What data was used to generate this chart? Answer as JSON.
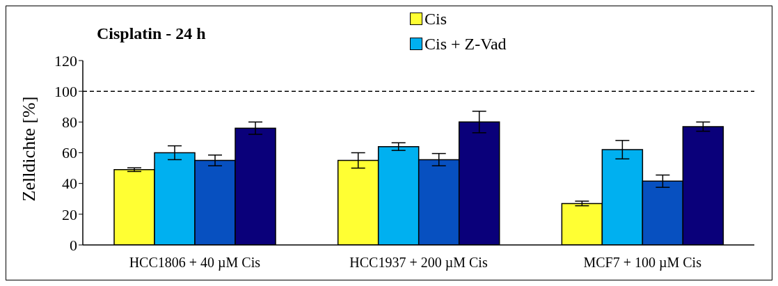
{
  "chart_data": {
    "type": "bar",
    "title": "Cisplatin - 24 h",
    "ylabel": "Zelldichte [%]",
    "categories": [
      "HCC1806 + 40 µM Cis",
      "HCC1937 + 200 µM Cis",
      "MCF7 + 100 µM Cis"
    ],
    "series": [
      {
        "name": "Cis",
        "color": "#ffff33",
        "values": [
          49,
          55,
          27
        ],
        "errors": [
          1.2,
          5,
          1.5
        ]
      },
      {
        "name": "Cis + Z-Vad",
        "color": "#00b0f0",
        "values": [
          60,
          64,
          62
        ],
        "errors": [
          4.5,
          2.5,
          6
        ]
      },
      {
        "color": "#0750c0",
        "values": [
          55,
          55.5,
          41.5
        ],
        "errors": [
          3.5,
          4,
          4
        ]
      },
      {
        "color": "#0a007a",
        "values": [
          76,
          80,
          77
        ],
        "errors": [
          4,
          7,
          3
        ]
      }
    ],
    "ylim": [
      0,
      120
    ],
    "yticks": [
      0,
      20,
      40,
      60,
      80,
      100,
      120
    ],
    "ref_lines": [
      {
        "axis": "y",
        "value": 100,
        "line_style": "dashed"
      }
    ],
    "legend": "top",
    "grid": false
  }
}
